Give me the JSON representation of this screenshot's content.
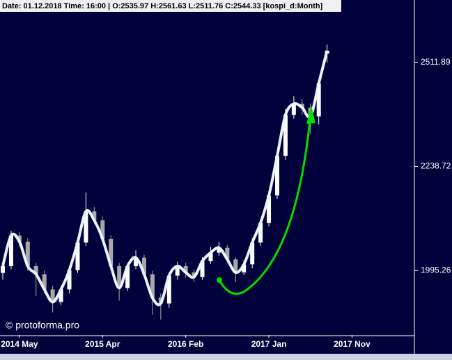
{
  "chart_data": {
    "type": "candlestick",
    "title": "Date: 01.12.2018 Time: 16:00 | O:2535.97 H:2561.63 L:2511.76 C:2544.33 [kospi_d:Month]",
    "watermark": "© protoforma.pro",
    "log_scale": true,
    "up_color": "#ffffff",
    "down_color": "#a8a8a8",
    "line_color": "#e8f4ff",
    "xlim": [
      0,
      99
    ],
    "xticks": [
      {
        "value": 4,
        "label": "2014 May"
      },
      {
        "value": 24,
        "label": "2015 Apr"
      },
      {
        "value": 44,
        "label": "2016 Feb"
      },
      {
        "value": 64,
        "label": "2017 Jan"
      },
      {
        "value": 84,
        "label": "2017 Nov"
      }
    ],
    "ylim": [
      1858,
      2654
    ],
    "yticks": [
      1995.26,
      2238.72,
      2511.89
    ],
    "x": [
      0,
      2,
      4,
      6,
      8,
      10,
      12,
      14,
      16,
      18,
      20,
      22,
      24,
      26,
      28,
      30,
      32,
      34,
      36,
      38,
      40,
      42,
      44,
      46,
      48,
      50,
      52,
      54,
      56,
      58,
      60,
      62,
      64,
      66,
      68,
      70,
      72,
      74,
      76,
      78
    ],
    "open": [
      1990,
      2005,
      2074,
      2060,
      2005,
      1987,
      1954,
      1927,
      1954,
      1996,
      2058,
      2130,
      2109,
      2066,
      2005,
      1957,
      2005,
      2024,
      1987,
      1936,
      1924,
      1984,
      2005,
      1991,
      1981,
      2016,
      2035,
      2046,
      2020,
      1991,
      2009,
      2058,
      2103,
      2168,
      2265,
      2370,
      2399,
      2389,
      2366,
      2535.97
    ],
    "high": [
      2015,
      2085,
      2082,
      2068,
      2012,
      1995,
      1962,
      1962,
      2005,
      2070,
      2175,
      2140,
      2118,
      2075,
      2012,
      2012,
      2040,
      2030,
      1995,
      1945,
      1992,
      2015,
      2012,
      1998,
      2025,
      2048,
      2060,
      2052,
      2025,
      2018,
      2068,
      2112,
      2180,
      2280,
      2385,
      2420,
      2412,
      2400,
      2465,
      2561.63
    ],
    "low": [
      1975,
      1998,
      2050,
      1995,
      1940,
      1945,
      1905,
      1920,
      1945,
      1990,
      2050,
      2100,
      2060,
      1995,
      1930,
      1950,
      1998,
      1980,
      1900,
      1890,
      1915,
      1975,
      1980,
      1970,
      1975,
      2010,
      2028,
      2012,
      1970,
      1985,
      2000,
      2050,
      2095,
      2160,
      2255,
      2360,
      2370,
      2320,
      2345,
      2511.76
    ],
    "close": [
      2005,
      2074,
      2060,
      2005,
      1987,
      1954,
      1927,
      1954,
      1996,
      2058,
      2130,
      2109,
      2066,
      2005,
      1957,
      2005,
      2024,
      1987,
      1936,
      1924,
      1984,
      2005,
      1991,
      1981,
      2016,
      2035,
      2046,
      2020,
      1991,
      2009,
      2058,
      2103,
      2168,
      2265,
      2370,
      2399,
      2389,
      2366,
      2454,
      2544.33
    ]
  }
}
